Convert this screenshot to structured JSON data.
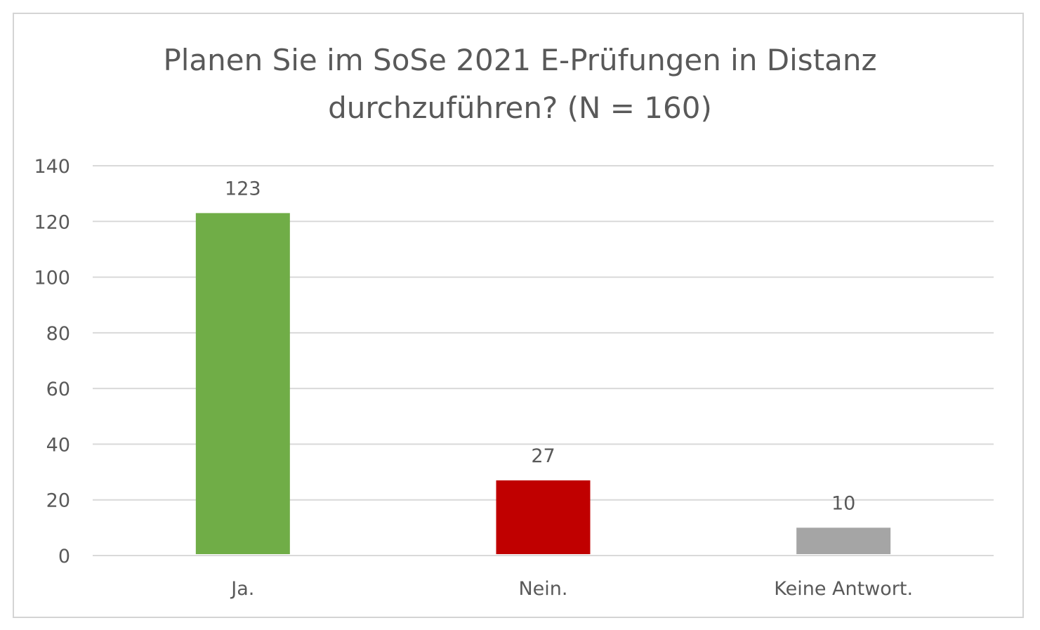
{
  "chart_data": {
    "type": "bar",
    "title_lines": [
      "Planen Sie im SoSe 2021 E-Prüfungen in Distanz",
      "durchzuführen? (N = 160)"
    ],
    "categories": [
      "Ja.",
      "Nein.",
      "Keine Antwort."
    ],
    "values": [
      123,
      27,
      10
    ],
    "colors": [
      "#70ad47",
      "#c00000",
      "#a5a5a5"
    ],
    "ylim": [
      0,
      140
    ],
    "yticks": [
      0,
      20,
      40,
      60,
      80,
      100,
      120,
      140
    ],
    "grid": true,
    "data_labels": true,
    "xlabel": "",
    "ylabel": "",
    "gridline_color": "#d9d9d9"
  }
}
